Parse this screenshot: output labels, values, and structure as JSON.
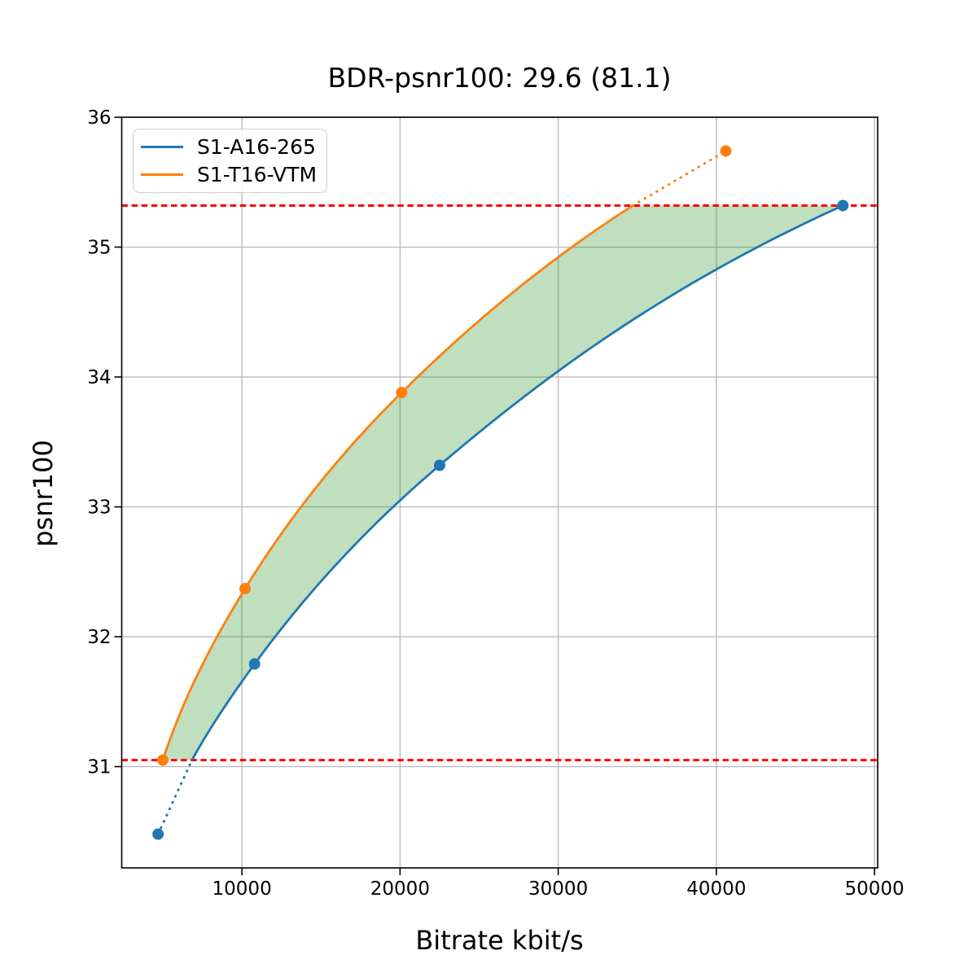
{
  "chart_data": {
    "type": "line",
    "title": "BDR-psnr100: 29.6 (81.1)",
    "xlabel": "Bitrate kbit/s",
    "ylabel": "psnr100",
    "xlim": [
      2400,
      50200
    ],
    "ylim": [
      30.22,
      36.0
    ],
    "xticks": [
      10000,
      20000,
      30000,
      40000,
      50000
    ],
    "yticks": [
      31,
      32,
      33,
      34,
      35,
      36
    ],
    "grid": true,
    "grid_color": "#bcbcbc",
    "legend_position": "upper-left",
    "series": [
      {
        "name": "S1-A16-265",
        "color": "#1f77b4",
        "points": [
          [
            4700,
            30.48
          ],
          [
            10800,
            31.79
          ],
          [
            22500,
            33.32
          ],
          [
            48000,
            35.32
          ]
        ]
      },
      {
        "name": "S1-T16-VTM",
        "color": "#ff7f0e",
        "points": [
          [
            5000,
            31.05
          ],
          [
            10200,
            32.37
          ],
          [
            20100,
            33.88
          ],
          [
            40600,
            35.74
          ]
        ]
      }
    ],
    "overlap_band": {
      "lower_psnr": 31.05,
      "upper_psnr": 35.32,
      "line_color": "#ff0000",
      "line_style": "dashed"
    },
    "shaded_region": {
      "color": "#008000",
      "opacity": 0.25,
      "description": "area between curves within overlap band"
    }
  }
}
